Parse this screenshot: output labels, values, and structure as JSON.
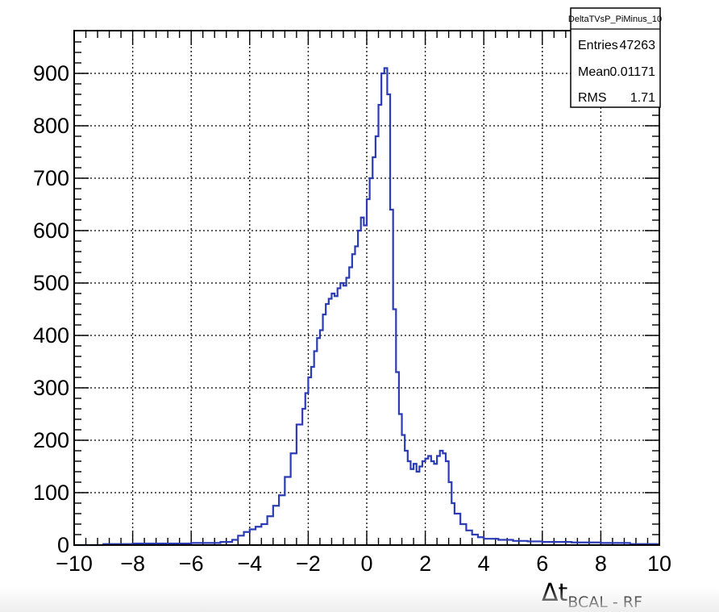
{
  "chart_data": {
    "type": "line",
    "style": "step-histogram",
    "title": "",
    "xlabel": {
      "main": "Δt",
      "subscript": "BCAL - RF"
    },
    "ylabel": "",
    "xlim": [
      -10,
      10
    ],
    "ylim": [
      0,
      960
    ],
    "x_ticks": [
      -10,
      -8,
      -6,
      -4,
      -2,
      0,
      2,
      4,
      6,
      8,
      10
    ],
    "x_tick_labels": [
      "−10",
      "−8",
      "−6",
      "−4",
      "−2",
      "0",
      "2",
      "4",
      "6",
      "8",
      "10"
    ],
    "y_ticks": [
      0,
      100,
      200,
      300,
      400,
      500,
      600,
      700,
      800,
      900
    ],
    "y_tick_labels": [
      "0",
      "100",
      "200",
      "300",
      "400",
      "500",
      "600",
      "700",
      "800",
      "900"
    ],
    "grid": true,
    "line_color": "#2a3bb5",
    "series": [
      {
        "x": [
          -10.0,
          -9.0,
          -8.0,
          -7.0,
          -6.0,
          -5.0,
          -4.6,
          -4.4,
          -4.2,
          -4.0,
          -3.8,
          -3.6,
          -3.4,
          -3.2,
          -3.0,
          -2.8,
          -2.6,
          -2.4,
          -2.2,
          -2.1,
          -2.0,
          -1.9,
          -1.8,
          -1.7,
          -1.6,
          -1.5,
          -1.4,
          -1.3,
          -1.2,
          -1.1,
          -1.0,
          -0.9,
          -0.8,
          -0.7,
          -0.6,
          -0.5,
          -0.4,
          -0.3,
          -0.2,
          -0.1,
          0.0,
          0.1,
          0.2,
          0.3,
          0.4,
          0.5,
          0.6,
          0.7,
          0.8,
          0.9,
          1.0,
          1.1,
          1.2,
          1.3,
          1.4,
          1.5,
          1.6,
          1.7,
          1.8,
          1.9,
          2.0,
          2.1,
          2.2,
          2.3,
          2.4,
          2.5,
          2.6,
          2.7,
          2.8,
          2.9,
          3.0,
          3.2,
          3.4,
          3.6,
          3.8,
          4.0,
          4.5,
          5.0,
          5.5,
          6.0,
          7.0,
          8.0,
          9.0
        ],
        "y": [
          0,
          2,
          3,
          3,
          4,
          6,
          10,
          18,
          25,
          30,
          35,
          40,
          55,
          75,
          95,
          130,
          175,
          230,
          260,
          290,
          320,
          340,
          370,
          395,
          410,
          440,
          460,
          470,
          480,
          475,
          490,
          500,
          495,
          510,
          530,
          555,
          570,
          600,
          625,
          610,
          660,
          700,
          740,
          780,
          840,
          900,
          910,
          860,
          640,
          450,
          330,
          250,
          210,
          180,
          160,
          145,
          155,
          140,
          150,
          160,
          165,
          170,
          160,
          155,
          170,
          180,
          175,
          160,
          120,
          80,
          60,
          40,
          28,
          20,
          15,
          12,
          10,
          8,
          7,
          6,
          5,
          4,
          2
        ]
      }
    ],
    "stats_box": {
      "title": "DeltaTVsP_PiMinus_10",
      "rows": [
        {
          "label": "Entries",
          "value": "47263"
        },
        {
          "label": "Mean",
          "value": "0.01171"
        },
        {
          "label": "RMS",
          "value": "1.71"
        }
      ]
    }
  }
}
